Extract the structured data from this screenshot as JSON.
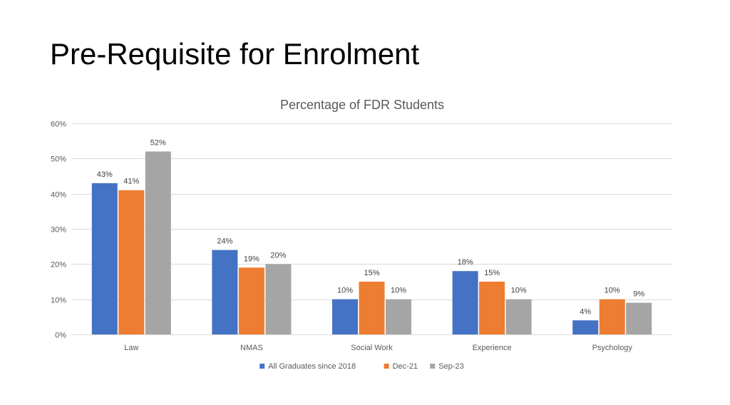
{
  "slide": {
    "title": "Pre-Requisite for Enrolment"
  },
  "chart_data": {
    "type": "bar",
    "title": "Percentage of FDR Students",
    "categories": [
      "Law",
      "NMAS",
      "Social Work",
      "Experience",
      "Psychology"
    ],
    "series": [
      {
        "name": "All Graduates since 2018",
        "color": "#4472c4",
        "values": [
          43,
          24,
          10,
          18,
          4
        ]
      },
      {
        "name": "Dec-21",
        "color": "#ed7d31",
        "values": [
          41,
          19,
          15,
          15,
          10
        ]
      },
      {
        "name": "Sep-23",
        "color": "#a5a5a5",
        "values": [
          52,
          20,
          10,
          10,
          9
        ]
      }
    ],
    "ylim": [
      0,
      60
    ],
    "yticks": [
      0,
      10,
      20,
      30,
      40,
      50,
      60
    ],
    "ytick_labels": [
      "0%",
      "10%",
      "20%",
      "30%",
      "40%",
      "50%",
      "60%"
    ],
    "value_suffix": "%",
    "grid": true,
    "legend_position": "bottom"
  }
}
